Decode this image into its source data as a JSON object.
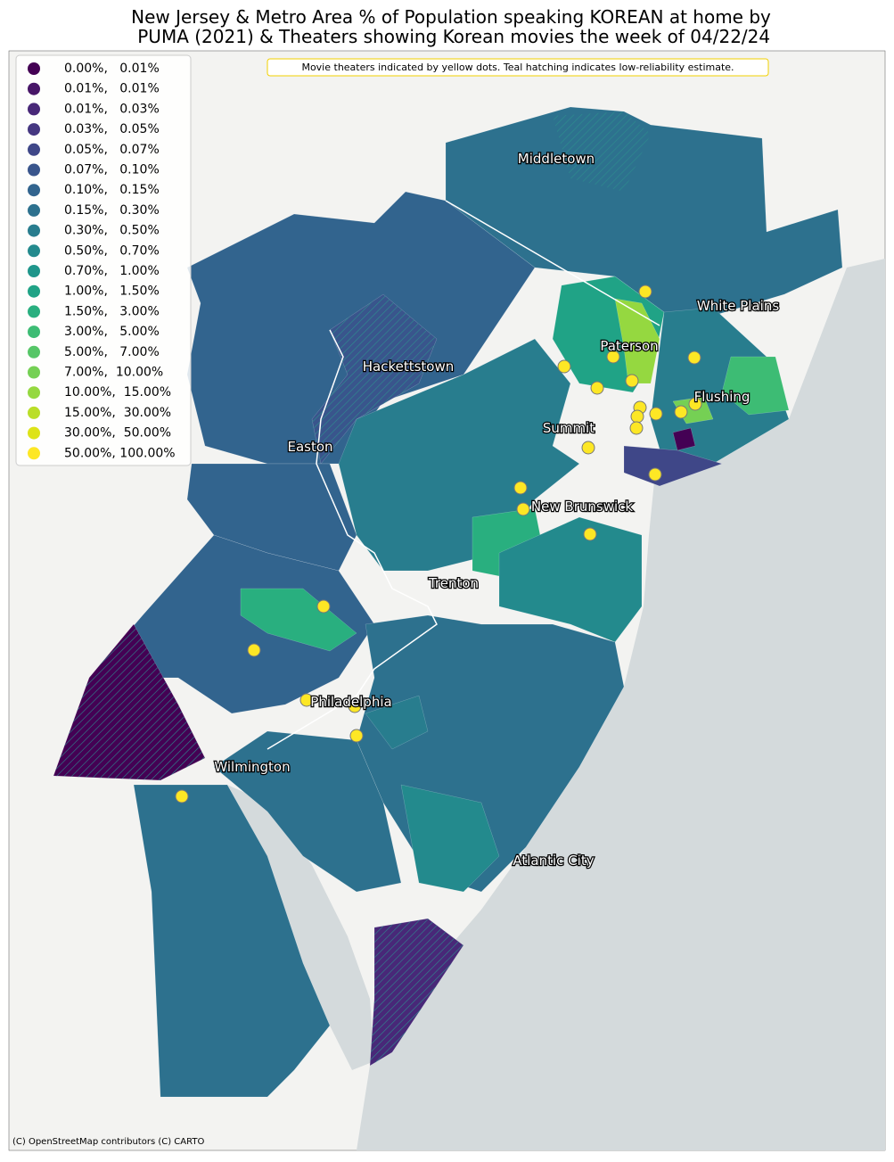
{
  "title_lines": [
    "New Jersey & Metro Area % of Population speaking KOREAN at home by",
    " PUMA (2021) & Theaters showing Korean movies the week of 04/22/24"
  ],
  "note": "Movie theaters indicated by yellow dots. Teal hatching indicates low-reliability estimate.",
  "legend": [
    {
      "label": "0.00%,   0.01%",
      "color": "#440154"
    },
    {
      "label": "0.01%,   0.01%",
      "color": "#481668"
    },
    {
      "label": "0.01%,   0.03%",
      "color": "#482878"
    },
    {
      "label": "0.03%,   0.05%",
      "color": "#453781"
    },
    {
      "label": "0.05%,   0.07%",
      "color": "#3f4788"
    },
    {
      "label": "0.07%,   0.10%",
      "color": "#39558c"
    },
    {
      "label": "0.10%,   0.15%",
      "color": "#32648e"
    },
    {
      "label": "0.15%,   0.30%",
      "color": "#2d718e"
    },
    {
      "label": "0.30%,   0.50%",
      "color": "#287d8e"
    },
    {
      "label": "0.50%,   0.70%",
      "color": "#238a8d"
    },
    {
      "label": "0.70%,   1.00%",
      "color": "#1f968b"
    },
    {
      "label": "1.00%,   1.50%",
      "color": "#20a386"
    },
    {
      "label": "1.50%,   3.00%",
      "color": "#29af7f"
    },
    {
      "label": "3.00%,   5.00%",
      "color": "#3dbc74"
    },
    {
      "label": "5.00%,   7.00%",
      "color": "#56c667"
    },
    {
      "label": "7.00%,  10.00%",
      "color": "#75d054"
    },
    {
      "label": "10.00%,  15.00%",
      "color": "#95d840"
    },
    {
      "label": "15.00%,  30.00%",
      "color": "#bade28"
    },
    {
      "label": "30.00%,  50.00%",
      "color": "#dde318"
    },
    {
      "label": "50.00%, 100.00%",
      "color": "#fde725"
    }
  ],
  "places": [
    "Middletown",
    "White Plains",
    "Paterson",
    "Hackettstown",
    "Flushing",
    "Summit",
    "Easton",
    "New Brunswick",
    "Trenton",
    "Philadelphia",
    "Wilmington",
    "Atlantic City"
  ],
  "attribution": "(C) OpenStreetMap contributors (C) CARTO"
}
